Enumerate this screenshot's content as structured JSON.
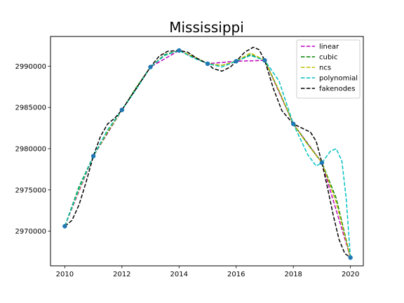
{
  "chart_data": {
    "type": "line",
    "title": "Mississippi",
    "xlabel": "",
    "ylabel": "",
    "xlim": [
      2009.5,
      2020.45
    ],
    "ylim": [
      2965800,
      2993600
    ],
    "xticks": [
      2010,
      2012,
      2014,
      2016,
      2018,
      2020
    ],
    "xtick_labels": [
      "2010",
      "2012",
      "2014",
      "2016",
      "2018",
      "2020"
    ],
    "yticks": [
      2970000,
      2975000,
      2980000,
      2985000,
      2990000
    ],
    "ytick_labels": [
      "2970000",
      "2975000",
      "2980000",
      "2985000",
      "2990000"
    ],
    "grid": false,
    "legend_position": "top-right",
    "points": {
      "x": [
        2010,
        2011,
        2012,
        2013,
        2014,
        2015,
        2016,
        2017,
        2018,
        2019,
        2020
      ],
      "y": [
        2970600,
        2979100,
        2984700,
        2989900,
        2991900,
        2990300,
        2990600,
        2990700,
        2983000,
        2978300,
        2966800
      ],
      "color": "#1f77b4"
    },
    "series": [
      {
        "name": "linear",
        "color": "#bf00bf",
        "x": [
          2010,
          2011,
          2012,
          2013,
          2014,
          2015,
          2016,
          2017,
          2018,
          2019,
          2020
        ],
        "y": [
          2970600,
          2979100,
          2984700,
          2989900,
          2991900,
          2990300,
          2990600,
          2990700,
          2983000,
          2978300,
          2966800
        ]
      },
      {
        "name": "cubic",
        "color": "#008000",
        "x": [
          2010,
          2010.5,
          2011,
          2011.5,
          2012,
          2012.5,
          2013,
          2013.5,
          2014,
          2014.5,
          2015,
          2015.5,
          2016,
          2016.5,
          2017,
          2017.5,
          2018,
          2018.5,
          2019,
          2019.5,
          2020
        ],
        "y": [
          2970600,
          2975400,
          2979100,
          2982000,
          2984700,
          2987400,
          2989900,
          2991400,
          2991900,
          2991100,
          2990300,
          2990100,
          2990600,
          2991400,
          2990700,
          2987000,
          2983000,
          2980600,
          2978300,
          2974000,
          2966800
        ]
      },
      {
        "name": "ncs",
        "color": "#bfbf00",
        "x": [
          2010,
          2010.5,
          2011,
          2011.5,
          2012,
          2012.5,
          2013,
          2013.5,
          2014,
          2014.5,
          2015,
          2015.5,
          2016,
          2016.5,
          2017,
          2017.5,
          2018,
          2018.5,
          2019,
          2019.5,
          2020
        ],
        "y": [
          2970600,
          2975000,
          2979100,
          2982100,
          2984700,
          2987300,
          2989900,
          2991300,
          2991900,
          2991200,
          2990300,
          2990100,
          2990600,
          2991600,
          2990700,
          2987000,
          2983000,
          2980500,
          2978300,
          2973500,
          2966800
        ]
      },
      {
        "name": "polynomial",
        "color": "#00bfbf",
        "x": [
          2010,
          2010.5,
          2011,
          2011.5,
          2012,
          2012.5,
          2013,
          2013.5,
          2014,
          2014.5,
          2015,
          2015.5,
          2016,
          2016.5,
          2017,
          2017.5,
          2018,
          2018.5,
          2018.8,
          2019,
          2019.3,
          2019.5,
          2019.7,
          2019.85,
          2020
        ],
        "y": [
          2970600,
          2975200,
          2979100,
          2982300,
          2984700,
          2987200,
          2989900,
          2991300,
          2991900,
          2991000,
          2990300,
          2989900,
          2990600,
          2991300,
          2990700,
          2988200,
          2983000,
          2979300,
          2977900,
          2978300,
          2979700,
          2980000,
          2978500,
          2974000,
          2966800
        ]
      },
      {
        "name": "fakenodes",
        "color": "#000000",
        "x": [
          2010,
          2010.25,
          2010.5,
          2010.75,
          2011,
          2011.25,
          2011.5,
          2011.75,
          2012,
          2012.5,
          2013,
          2013.3,
          2013.6,
          2014,
          2014.3,
          2014.6,
          2015,
          2015.2,
          2015.5,
          2015.8,
          2016,
          2016.3,
          2016.6,
          2016.8,
          2017,
          2017.3,
          2017.6,
          2018,
          2018.3,
          2018.6,
          2018.8,
          2019,
          2019.2,
          2019.4,
          2019.6,
          2019.8,
          2020
        ],
        "y": [
          2970600,
          2971300,
          2973200,
          2976000,
          2979100,
          2981500,
          2983000,
          2983700,
          2984700,
          2987300,
          2989900,
          2991200,
          2991800,
          2991900,
          2991700,
          2991000,
          2990300,
          2989700,
          2989400,
          2989900,
          2990600,
          2991700,
          2992300,
          2992000,
          2990700,
          2987300,
          2984600,
          2983000,
          2982500,
          2982000,
          2980900,
          2978300,
          2975200,
          2971900,
          2969000,
          2967300,
          2966800
        ]
      }
    ]
  }
}
